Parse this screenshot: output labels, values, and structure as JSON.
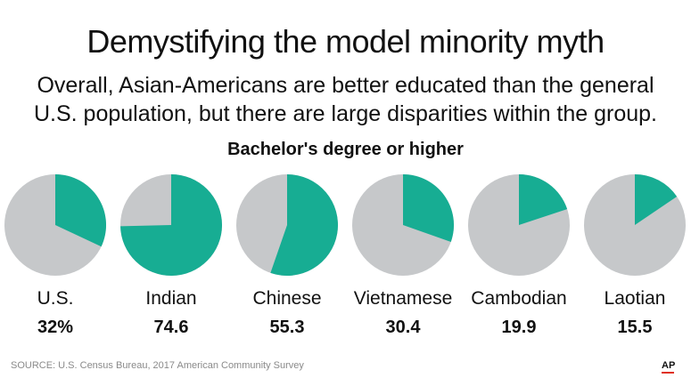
{
  "title": "Demystifying the model minority myth",
  "subtitle": "Overall, Asian-Americans are better educated than the general U.S. population, but there are large disparities within the group.",
  "colors": {
    "highlight": "#17ad93",
    "remainder": "#c6c8ca"
  },
  "chart_data": {
    "type": "pie",
    "title": "Bachelor's degree or higher",
    "unit": "percent",
    "categories": [
      "U.S.",
      "Indian",
      "Chinese",
      "Vietnamese",
      "Cambodian",
      "Laotian"
    ],
    "values": [
      32,
      74.6,
      55.3,
      30.4,
      19.9,
      15.5
    ],
    "value_labels": [
      "32%",
      "74.6",
      "55.3",
      "30.4",
      "19.9",
      "15.5"
    ]
  },
  "footer": {
    "source": "SOURCE: U.S. Census Bureau, 2017 American Community Survey",
    "logo": "AP"
  }
}
